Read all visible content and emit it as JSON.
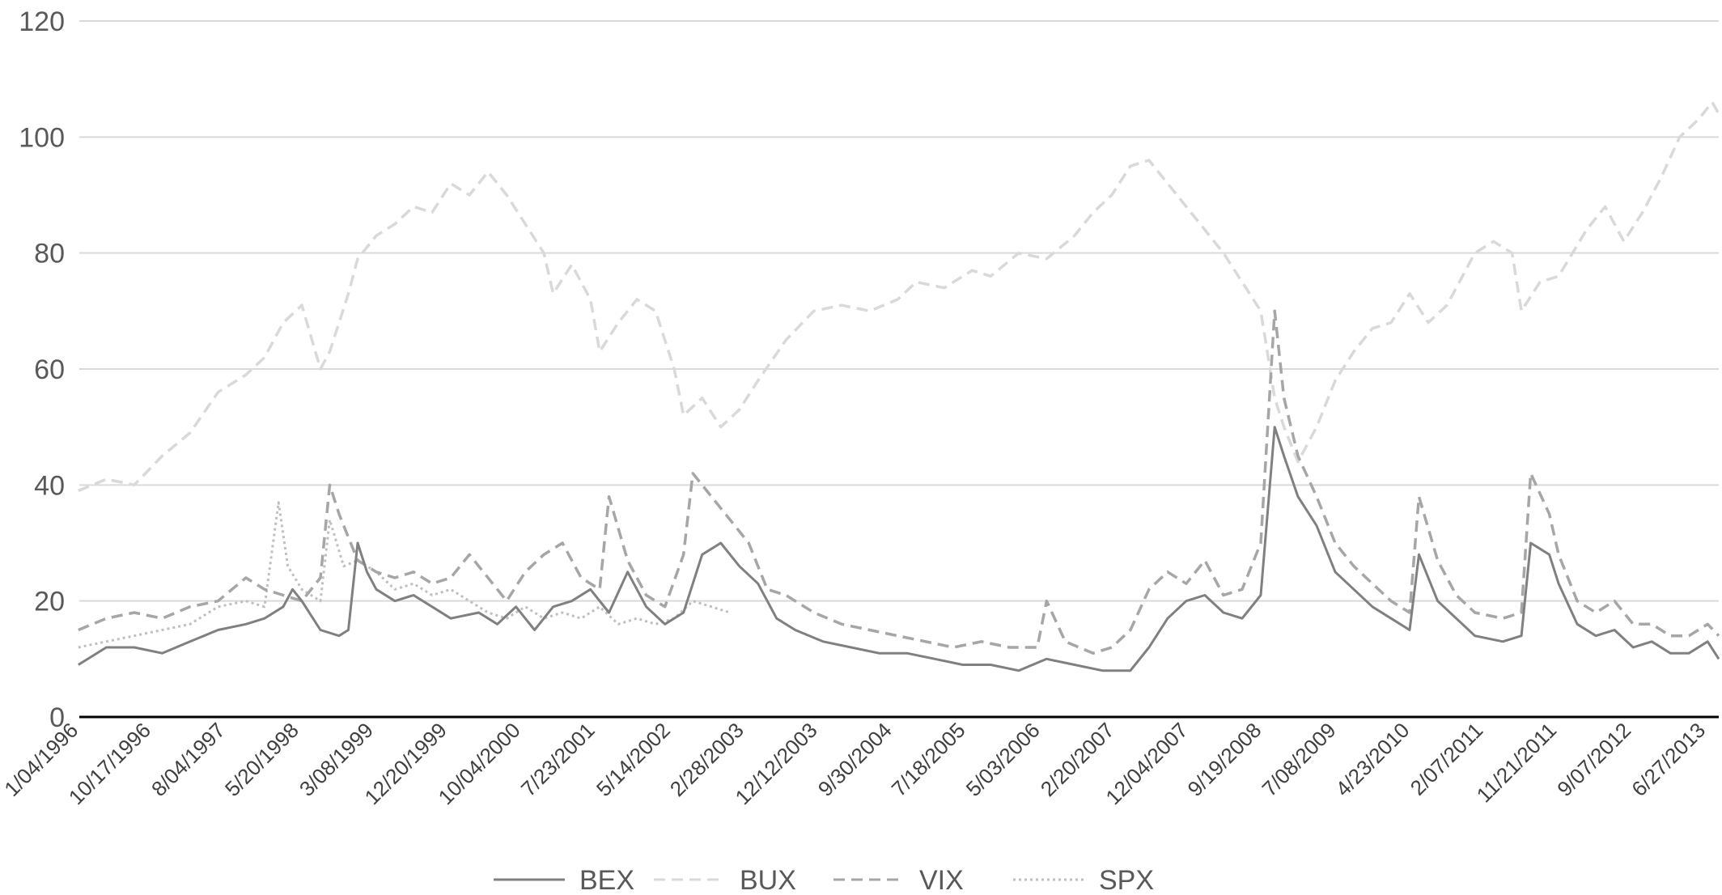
{
  "chart_data": {
    "type": "line",
    "title": "",
    "xlabel": "",
    "ylabel": "",
    "ylim": [
      0,
      120
    ],
    "yticks": [
      0,
      20,
      40,
      60,
      80,
      100,
      120
    ],
    "grid": true,
    "legend_position": "bottom",
    "x_tick_labels": [
      "1/04/1996",
      "10/17/1996",
      "8/04/1997",
      "5/20/1998",
      "3/08/1999",
      "12/20/1999",
      "10/04/2000",
      "7/23/2001",
      "5/14/2002",
      "2/28/2003",
      "12/12/2003",
      "9/30/2004",
      "7/18/2005",
      "5/03/2006",
      "2/20/2007",
      "12/04/2007",
      "9/19/2008",
      "7/08/2009",
      "4/23/2010",
      "2/07/2011",
      "11/21/2011",
      "9/07/2012",
      "6/27/2013"
    ],
    "x_tick_years": [
      1996.01,
      1996.79,
      1997.59,
      1998.38,
      1999.18,
      1999.97,
      2000.76,
      2001.56,
      2002.37,
      2003.16,
      2003.95,
      2004.75,
      2005.54,
      2006.34,
      2007.14,
      2007.93,
      2008.72,
      2009.52,
      2010.31,
      2011.1,
      2011.89,
      2012.69,
      2013.49
    ],
    "x_range_years": [
      1996.01,
      2013.62
    ],
    "series": [
      {
        "name": "BEX",
        "style": "solid",
        "color": "#808080",
        "points": [
          [
            1996.0,
            9
          ],
          [
            1996.3,
            12
          ],
          [
            1996.6,
            12
          ],
          [
            1996.9,
            11
          ],
          [
            1997.2,
            13
          ],
          [
            1997.5,
            15
          ],
          [
            1997.8,
            16
          ],
          [
            1998.0,
            17
          ],
          [
            1998.2,
            19
          ],
          [
            1998.3,
            22
          ],
          [
            1998.4,
            20
          ],
          [
            1998.6,
            15
          ],
          [
            1998.8,
            14
          ],
          [
            1998.9,
            15
          ],
          [
            1999.0,
            30
          ],
          [
            1999.1,
            25
          ],
          [
            1999.2,
            22
          ],
          [
            1999.4,
            20
          ],
          [
            1999.6,
            21
          ],
          [
            1999.8,
            19
          ],
          [
            2000.0,
            17
          ],
          [
            2000.3,
            18
          ],
          [
            2000.5,
            16
          ],
          [
            2000.7,
            19
          ],
          [
            2000.9,
            15
          ],
          [
            2001.1,
            19
          ],
          [
            2001.3,
            20
          ],
          [
            2001.5,
            22
          ],
          [
            2001.7,
            18
          ],
          [
            2001.9,
            25
          ],
          [
            2002.1,
            19
          ],
          [
            2002.3,
            16
          ],
          [
            2002.5,
            18
          ],
          [
            2002.7,
            28
          ],
          [
            2002.9,
            30
          ],
          [
            2003.1,
            26
          ],
          [
            2003.3,
            23
          ],
          [
            2003.5,
            17
          ],
          [
            2003.7,
            15
          ],
          [
            2004.0,
            13
          ],
          [
            2004.3,
            12
          ],
          [
            2004.6,
            11
          ],
          [
            2004.9,
            11
          ],
          [
            2005.2,
            10
          ],
          [
            2005.5,
            9
          ],
          [
            2005.8,
            9
          ],
          [
            2006.1,
            8
          ],
          [
            2006.4,
            10
          ],
          [
            2006.7,
            9
          ],
          [
            2007.0,
            8
          ],
          [
            2007.3,
            8
          ],
          [
            2007.5,
            12
          ],
          [
            2007.7,
            17
          ],
          [
            2007.9,
            20
          ],
          [
            2008.1,
            21
          ],
          [
            2008.3,
            18
          ],
          [
            2008.5,
            17
          ],
          [
            2008.7,
            21
          ],
          [
            2008.85,
            50
          ],
          [
            2008.95,
            45
          ],
          [
            2009.1,
            38
          ],
          [
            2009.3,
            33
          ],
          [
            2009.5,
            25
          ],
          [
            2009.7,
            22
          ],
          [
            2009.9,
            19
          ],
          [
            2010.1,
            17
          ],
          [
            2010.3,
            15
          ],
          [
            2010.4,
            28
          ],
          [
            2010.6,
            20
          ],
          [
            2010.8,
            17
          ],
          [
            2011.0,
            14
          ],
          [
            2011.3,
            13
          ],
          [
            2011.5,
            14
          ],
          [
            2011.6,
            30
          ],
          [
            2011.8,
            28
          ],
          [
            2011.9,
            23
          ],
          [
            2012.1,
            16
          ],
          [
            2012.3,
            14
          ],
          [
            2012.5,
            15
          ],
          [
            2012.7,
            12
          ],
          [
            2012.9,
            13
          ],
          [
            2013.1,
            11
          ],
          [
            2013.3,
            11
          ],
          [
            2013.5,
            13
          ],
          [
            2013.62,
            10
          ]
        ]
      },
      {
        "name": "BUX",
        "style": "dashed",
        "color": "#d9d9d9",
        "points": [
          [
            1996.0,
            39
          ],
          [
            1996.3,
            41
          ],
          [
            1996.6,
            40
          ],
          [
            1996.9,
            45
          ],
          [
            1997.2,
            49
          ],
          [
            1997.5,
            56
          ],
          [
            1997.8,
            59
          ],
          [
            1998.0,
            62
          ],
          [
            1998.2,
            68
          ],
          [
            1998.4,
            71
          ],
          [
            1998.6,
            60
          ],
          [
            1998.7,
            63
          ],
          [
            1998.9,
            73
          ],
          [
            1999.0,
            79
          ],
          [
            1999.2,
            83
          ],
          [
            1999.4,
            85
          ],
          [
            1999.6,
            88
          ],
          [
            1999.8,
            87
          ],
          [
            2000.0,
            92
          ],
          [
            2000.2,
            90
          ],
          [
            2000.4,
            94
          ],
          [
            2000.6,
            90
          ],
          [
            2000.8,
            85
          ],
          [
            2001.0,
            80
          ],
          [
            2001.1,
            73
          ],
          [
            2001.3,
            78
          ],
          [
            2001.5,
            72
          ],
          [
            2001.6,
            63
          ],
          [
            2001.8,
            68
          ],
          [
            2002.0,
            72
          ],
          [
            2002.2,
            70
          ],
          [
            2002.4,
            60
          ],
          [
            2002.5,
            52
          ],
          [
            2002.7,
            55
          ],
          [
            2002.9,
            50
          ],
          [
            2003.1,
            53
          ],
          [
            2003.3,
            58
          ],
          [
            2003.6,
            65
          ],
          [
            2003.9,
            70
          ],
          [
            2004.2,
            71
          ],
          [
            2004.5,
            70
          ],
          [
            2004.8,
            72
          ],
          [
            2005.0,
            75
          ],
          [
            2005.3,
            74
          ],
          [
            2005.6,
            77
          ],
          [
            2005.8,
            76
          ],
          [
            2006.1,
            80
          ],
          [
            2006.4,
            79
          ],
          [
            2006.7,
            83
          ],
          [
            2006.9,
            87
          ],
          [
            2007.1,
            90
          ],
          [
            2007.3,
            95
          ],
          [
            2007.5,
            96
          ],
          [
            2007.7,
            92
          ],
          [
            2007.9,
            88
          ],
          [
            2008.1,
            84
          ],
          [
            2008.3,
            80
          ],
          [
            2008.5,
            75
          ],
          [
            2008.7,
            70
          ],
          [
            2008.85,
            55
          ],
          [
            2008.95,
            50
          ],
          [
            2009.1,
            44
          ],
          [
            2009.3,
            50
          ],
          [
            2009.5,
            58
          ],
          [
            2009.7,
            63
          ],
          [
            2009.9,
            67
          ],
          [
            2010.1,
            68
          ],
          [
            2010.3,
            73
          ],
          [
            2010.5,
            68
          ],
          [
            2010.7,
            71
          ],
          [
            2011.0,
            80
          ],
          [
            2011.2,
            82
          ],
          [
            2011.4,
            80
          ],
          [
            2011.5,
            70
          ],
          [
            2011.7,
            75
          ],
          [
            2011.9,
            76
          ],
          [
            2012.2,
            84
          ],
          [
            2012.4,
            88
          ],
          [
            2012.6,
            82
          ],
          [
            2012.8,
            87
          ],
          [
            2013.0,
            93
          ],
          [
            2013.2,
            100
          ],
          [
            2013.4,
            103
          ],
          [
            2013.55,
            106
          ],
          [
            2013.62,
            104
          ]
        ]
      },
      {
        "name": "VIX",
        "style": "dashed",
        "color": "#a6a6a6",
        "points": [
          [
            1996.0,
            15
          ],
          [
            1996.3,
            17
          ],
          [
            1996.6,
            18
          ],
          [
            1996.9,
            17
          ],
          [
            1997.2,
            19
          ],
          [
            1997.5,
            20
          ],
          [
            1997.8,
            24
          ],
          [
            1998.0,
            22
          ],
          [
            1998.2,
            21
          ],
          [
            1998.4,
            20
          ],
          [
            1998.6,
            24
          ],
          [
            1998.7,
            40
          ],
          [
            1998.8,
            35
          ],
          [
            1999.0,
            27
          ],
          [
            1999.2,
            25
          ],
          [
            1999.4,
            24
          ],
          [
            1999.6,
            25
          ],
          [
            1999.8,
            23
          ],
          [
            2000.0,
            24
          ],
          [
            2000.2,
            28
          ],
          [
            2000.4,
            24
          ],
          [
            2000.6,
            20
          ],
          [
            2000.8,
            25
          ],
          [
            2001.0,
            28
          ],
          [
            2001.2,
            30
          ],
          [
            2001.4,
            24
          ],
          [
            2001.6,
            22
          ],
          [
            2001.7,
            38
          ],
          [
            2001.9,
            27
          ],
          [
            2002.1,
            21
          ],
          [
            2002.3,
            19
          ],
          [
            2002.5,
            28
          ],
          [
            2002.6,
            42
          ],
          [
            2002.8,
            38
          ],
          [
            2003.0,
            34
          ],
          [
            2003.2,
            30
          ],
          [
            2003.4,
            22
          ],
          [
            2003.6,
            21
          ],
          [
            2003.9,
            18
          ],
          [
            2004.2,
            16
          ],
          [
            2004.5,
            15
          ],
          [
            2004.8,
            14
          ],
          [
            2005.1,
            13
          ],
          [
            2005.4,
            12
          ],
          [
            2005.7,
            13
          ],
          [
            2006.0,
            12
          ],
          [
            2006.3,
            12
          ],
          [
            2006.4,
            20
          ],
          [
            2006.6,
            13
          ],
          [
            2006.9,
            11
          ],
          [
            2007.1,
            12
          ],
          [
            2007.3,
            15
          ],
          [
            2007.5,
            22
          ],
          [
            2007.7,
            25
          ],
          [
            2007.9,
            23
          ],
          [
            2008.1,
            27
          ],
          [
            2008.3,
            21
          ],
          [
            2008.5,
            22
          ],
          [
            2008.7,
            30
          ],
          [
            2008.85,
            70
          ],
          [
            2008.95,
            55
          ],
          [
            2009.1,
            45
          ],
          [
            2009.3,
            38
          ],
          [
            2009.5,
            30
          ],
          [
            2009.7,
            26
          ],
          [
            2009.9,
            23
          ],
          [
            2010.1,
            20
          ],
          [
            2010.3,
            18
          ],
          [
            2010.4,
            38
          ],
          [
            2010.6,
            27
          ],
          [
            2010.8,
            21
          ],
          [
            2011.0,
            18
          ],
          [
            2011.3,
            17
          ],
          [
            2011.5,
            18
          ],
          [
            2011.6,
            42
          ],
          [
            2011.8,
            35
          ],
          [
            2011.9,
            28
          ],
          [
            2012.1,
            20
          ],
          [
            2012.3,
            18
          ],
          [
            2012.5,
            20
          ],
          [
            2012.7,
            16
          ],
          [
            2012.9,
            16
          ],
          [
            2013.1,
            14
          ],
          [
            2013.3,
            14
          ],
          [
            2013.5,
            16
          ],
          [
            2013.62,
            14
          ]
        ]
      },
      {
        "name": "SPX",
        "style": "dotted",
        "color": "#bfbfbf",
        "points": [
          [
            1996.0,
            12
          ],
          [
            1996.3,
            13
          ],
          [
            1996.6,
            14
          ],
          [
            1996.9,
            15
          ],
          [
            1997.2,
            16
          ],
          [
            1997.5,
            19
          ],
          [
            1997.8,
            20
          ],
          [
            1998.0,
            19
          ],
          [
            1998.15,
            37
          ],
          [
            1998.25,
            26
          ],
          [
            1998.4,
            22
          ],
          [
            1998.6,
            20
          ],
          [
            1998.7,
            34
          ],
          [
            1998.85,
            26
          ],
          [
            1999.0,
            27
          ],
          [
            1999.2,
            25
          ],
          [
            1999.4,
            22
          ],
          [
            1999.6,
            23
          ],
          [
            1999.8,
            21
          ],
          [
            2000.0,
            22
          ],
          [
            2000.2,
            20
          ],
          [
            2000.4,
            18
          ],
          [
            2000.6,
            17
          ],
          [
            2000.8,
            19
          ],
          [
            2001.0,
            17
          ],
          [
            2001.2,
            18
          ],
          [
            2001.4,
            17
          ],
          [
            2001.6,
            19
          ],
          [
            2001.8,
            16
          ],
          [
            2002.0,
            17
          ],
          [
            2002.2,
            16
          ],
          [
            2002.4,
            17
          ],
          [
            2002.6,
            20
          ],
          [
            2002.8,
            19
          ],
          [
            2003.0,
            18
          ]
        ]
      }
    ]
  }
}
